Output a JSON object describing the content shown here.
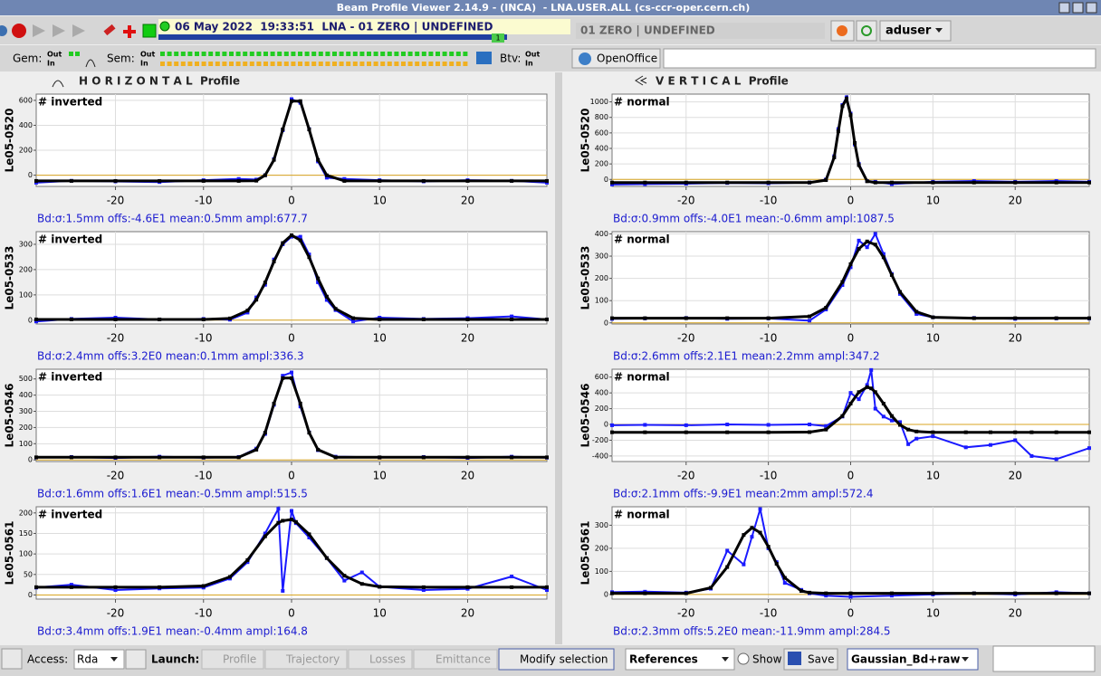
{
  "window": {
    "title": "Beam Profile Viewer 2.14.9 - (INCA)  - LNA.USER.ALL (cs-ccr-oper.cern.ch)"
  },
  "toolbar": {
    "status": "06 May 2022  19:33:51  LNA - 01 ZERO | UNDEFINED",
    "badge": "1",
    "cycle": "01 ZERO | UNDEFINED",
    "user": "aduser"
  },
  "monitors": {
    "gem": "Gem:",
    "sem": "Sem:",
    "btv": "Btv:",
    "out": "Out",
    "in": "In",
    "openoffice": "OpenOffice"
  },
  "panels": [
    {
      "title": "H O R I Z O N T A L  Profile",
      "charts": [
        {
          "type": "line",
          "ylabel": "Le05-0520",
          "tag": "# inverted",
          "footer": "Bd:σ:1.5mm offs:-4.6E1 mean:0.5mm ampl:677.7",
          "xlim": [
            -29,
            29
          ],
          "xticks": [
            -20,
            -10,
            0,
            10,
            20
          ],
          "ylim": [
            -90,
            650
          ],
          "yticks": [
            0,
            200,
            400,
            600
          ],
          "x": [
            -29,
            -25,
            -20,
            -15,
            -10,
            -6,
            -4,
            -3,
            -2,
            -1,
            0,
            1,
            2,
            3,
            4,
            6,
            10,
            15,
            20,
            25,
            29
          ],
          "series": [
            {
              "color": "#1a1aff",
              "values": [
                -60,
                -45,
                -50,
                -55,
                -40,
                -30,
                -35,
                0,
                130,
                360,
                610,
                580,
                370,
                110,
                -20,
                -30,
                -40,
                -50,
                -40,
                -45,
                -60
              ]
            },
            {
              "color": "#000000",
              "values": [
                -46,
                -46,
                -46,
                -46,
                -46,
                -46,
                -44,
                -1,
                123,
                367,
                594,
                594,
                367,
                123,
                -1,
                -46,
                -46,
                -46,
                -46,
                -46,
                -46
              ]
            }
          ]
        },
        {
          "type": "line",
          "ylabel": "Le05-0533",
          "tag": "# inverted",
          "footer": "Bd:σ:2.4mm offs:3.2E0 mean:0.1mm ampl:336.3",
          "xlim": [
            -29,
            29
          ],
          "xticks": [
            -20,
            -10,
            0,
            10,
            20
          ],
          "ylim": [
            -15,
            350
          ],
          "yticks": [
            0,
            100,
            200,
            300
          ],
          "x": [
            -29,
            -25,
            -20,
            -15,
            -10,
            -7,
            -5,
            -4,
            -3,
            -2,
            -1,
            0,
            1,
            2,
            3,
            4,
            5,
            7,
            10,
            15,
            20,
            25,
            29
          ],
          "series": [
            {
              "color": "#1a1aff",
              "values": [
                -5,
                5,
                10,
                3,
                5,
                2,
                30,
                90,
                140,
                240,
                300,
                330,
                330,
                260,
                150,
                80,
                40,
                -5,
                10,
                5,
                8,
                15,
                3
              ]
            },
            {
              "color": "#000000",
              "values": [
                3,
                3,
                3,
                3,
                3,
                7,
                38,
                81,
                149,
                232,
                305,
                336,
                316,
                249,
                165,
                93,
                45,
                8,
                3,
                3,
                3,
                3,
                3
              ]
            }
          ]
        },
        {
          "type": "line",
          "ylabel": "Le05-0546",
          "tag": "# inverted",
          "footer": "Bd:σ:1.6mm offs:1.6E1 mean:-0.5mm ampl:515.5",
          "xlim": [
            -29,
            29
          ],
          "xticks": [
            -20,
            -10,
            0,
            10,
            20
          ],
          "ylim": [
            -10,
            560
          ],
          "yticks": [
            0,
            100,
            200,
            300,
            400,
            500
          ],
          "x": [
            -29,
            -25,
            -20,
            -15,
            -10,
            -6,
            -4,
            -3,
            -2,
            -1,
            0,
            1,
            2,
            3,
            5,
            10,
            15,
            20,
            25,
            29
          ],
          "series": [
            {
              "color": "#1a1aff",
              "values": [
                15,
                18,
                12,
                20,
                14,
                18,
                70,
                160,
                340,
                520,
                540,
                330,
                170,
                60,
                20,
                15,
                18,
                12,
                20,
                14
              ]
            },
            {
              "color": "#000000",
              "values": [
                16,
                16,
                16,
                16,
                16,
                16,
                63,
                168,
                348,
                505,
                505,
                348,
                168,
                63,
                16,
                16,
                16,
                16,
                16,
                16
              ]
            }
          ]
        },
        {
          "type": "line",
          "ylabel": "Le05-0561",
          "tag": "# inverted",
          "footer": "Bd:σ:3.4mm offs:1.9E1 mean:-0.4mm ampl:164.8",
          "xlim": [
            -29,
            29
          ],
          "xticks": [
            -20,
            -10,
            0,
            10,
            20
          ],
          "ylim": [
            -10,
            215
          ],
          "yticks": [
            0,
            50,
            100,
            150,
            200
          ],
          "x": [
            -29,
            -25,
            -20,
            -15,
            -10,
            -7,
            -5,
            -3,
            -1.5,
            -1,
            0,
            0.5,
            2,
            4,
            6,
            8,
            10,
            15,
            20,
            25,
            29
          ],
          "series": [
            {
              "color": "#1a1aff",
              "values": [
                18,
                25,
                12,
                16,
                18,
                40,
                80,
                150,
                210,
                10,
                205,
                175,
                140,
                90,
                35,
                55,
                20,
                12,
                15,
                45,
                12
              ]
            },
            {
              "color": "#000000",
              "values": [
                19,
                19,
                19,
                19,
                22,
                44,
                85,
                143,
                176,
                181,
                184,
                178,
                148,
                90,
                47,
                27,
                20,
                19,
                19,
                19,
                19
              ]
            }
          ]
        }
      ]
    },
    {
      "title": "V E R T I C A L  Profile",
      "charts": [
        {
          "type": "line",
          "ylabel": "Le05-0520",
          "tag": "# normal",
          "footer": "Bd:σ:0.9mm offs:-4.0E1 mean:-0.6mm ampl:1087.5",
          "xlim": [
            -29,
            29
          ],
          "xticks": [
            -20,
            -10,
            0,
            10,
            20
          ],
          "ylim": [
            -90,
            1100
          ],
          "yticks": [
            0,
            200,
            400,
            600,
            800,
            1000
          ],
          "x": [
            -29,
            -25,
            -20,
            -15,
            -10,
            -5,
            -3,
            -2,
            -1.5,
            -1,
            -0.5,
            0,
            0.5,
            1,
            2,
            3,
            5,
            10,
            15,
            20,
            25,
            29
          ],
          "series": [
            {
              "color": "#1a1aff",
              "values": [
                -65,
                -60,
                -55,
                -45,
                -50,
                -40,
                0,
                300,
                650,
                960,
                1060,
                850,
                450,
                200,
                -20,
                -30,
                -60,
                -30,
                -20,
                -30,
                -20,
                -30
              ]
            },
            {
              "color": "#000000",
              "values": [
                -40,
                -40,
                -40,
                -40,
                -40,
                -40,
                -9,
                284,
                620,
                944,
                1040,
                830,
                470,
                184,
                -24,
                -40,
                -40,
                -40,
                -40,
                -40,
                -40,
                -40
              ]
            }
          ]
        },
        {
          "type": "line",
          "ylabel": "Le05-0533",
          "tag": "# normal",
          "footer": "Bd:σ:2.6mm offs:2.1E1 mean:2.2mm ampl:347.2",
          "xlim": [
            -29,
            29
          ],
          "xticks": [
            -20,
            -10,
            0,
            10,
            20
          ],
          "ylim": [
            -5,
            410
          ],
          "yticks": [
            0,
            100,
            200,
            300,
            400
          ],
          "x": [
            -29,
            -25,
            -20,
            -15,
            -10,
            -5,
            -3,
            -1,
            0,
            1,
            2,
            3,
            4,
            5,
            6,
            8,
            10,
            15,
            20,
            25,
            29
          ],
          "series": [
            {
              "color": "#1a1aff",
              "values": [
                18,
                20,
                22,
                18,
                20,
                10,
                60,
                170,
                250,
                370,
                340,
                400,
                310,
                220,
                130,
                40,
                25,
                22,
                18,
                20,
                20
              ]
            },
            {
              "color": "#000000",
              "values": [
                21,
                21,
                21,
                21,
                21,
                29,
                68,
                184,
                264,
                333,
                366,
                352,
                295,
                215,
                139,
                50,
                25,
                21,
                21,
                21,
                21
              ]
            }
          ]
        },
        {
          "type": "line",
          "ylabel": "Le05-0546",
          "tag": "# normal",
          "footer": "Bd:σ:2.1mm offs:-9.9E1 mean:2mm ampl:572.4",
          "xlim": [
            -29,
            29
          ],
          "xticks": [
            -20,
            -10,
            0,
            10,
            20
          ],
          "ylim": [
            -470,
            700
          ],
          "yticks": [
            -400,
            -200,
            0,
            200,
            400,
            600
          ],
          "x": [
            -29,
            -25,
            -20,
            -15,
            -10,
            -5,
            -3,
            -1,
            0,
            1,
            2,
            2.5,
            3,
            4,
            5,
            6,
            7,
            8,
            10,
            14,
            17,
            20,
            22,
            25,
            29
          ],
          "series": [
            {
              "color": "#1a1aff",
              "values": [
                -10,
                -5,
                -10,
                0,
                -5,
                0,
                -20,
                100,
                400,
                320,
                500,
                690,
                200,
                100,
                50,
                30,
                -250,
                -180,
                -150,
                -290,
                -260,
                -200,
                -400,
                -440,
                -300
              ]
            },
            {
              "color": "#000000",
              "values": [
                -99,
                -99,
                -99,
                -99,
                -99,
                -97,
                -65,
                107,
                264,
                410,
                473,
                457,
                410,
                264,
                107,
                -6,
                -65,
                -89,
                -99,
                -99,
                -99,
                -99,
                -99,
                -99,
                -99
              ]
            }
          ]
        },
        {
          "type": "line",
          "ylabel": "Le05-0561",
          "tag": "# normal",
          "footer": "Bd:σ:2.3mm offs:5.2E0 mean:-11.9mm ampl:284.5",
          "xlim": [
            -29,
            29
          ],
          "xticks": [
            -20,
            -10,
            0,
            10,
            20
          ],
          "ylim": [
            -20,
            380
          ],
          "yticks": [
            0,
            100,
            200,
            300
          ],
          "x": [
            -29,
            -25,
            -20,
            -17,
            -15,
            -13,
            -12,
            -11,
            -10,
            -9,
            -8,
            -6,
            -5,
            -3,
            0,
            5,
            10,
            15,
            20,
            25,
            29
          ],
          "series": [
            {
              "color": "#1a1aff",
              "values": [
                10,
                12,
                8,
                25,
                190,
                130,
                250,
                370,
                200,
                140,
                50,
                20,
                5,
                -5,
                -10,
                -5,
                0,
                5,
                0,
                10,
                5
              ]
            },
            {
              "color": "#000000",
              "values": [
                5,
                5,
                5,
                29,
                119,
                258,
                289,
                268,
                207,
                133,
                72,
                15,
                8,
                5,
                5,
                5,
                5,
                5,
                5,
                5,
                5
              ]
            }
          ]
        }
      ]
    }
  ],
  "bottom": {
    "access_label": "Access:",
    "access": "Rda",
    "launch_label": "Launch:",
    "launch": [
      "Profile",
      "Trajectory",
      "Losses",
      "Emittance"
    ],
    "modify": "Modify selection",
    "references": "References",
    "show": "Show",
    "save": "Save",
    "fit": "Gaussian_Bd+raw"
  }
}
